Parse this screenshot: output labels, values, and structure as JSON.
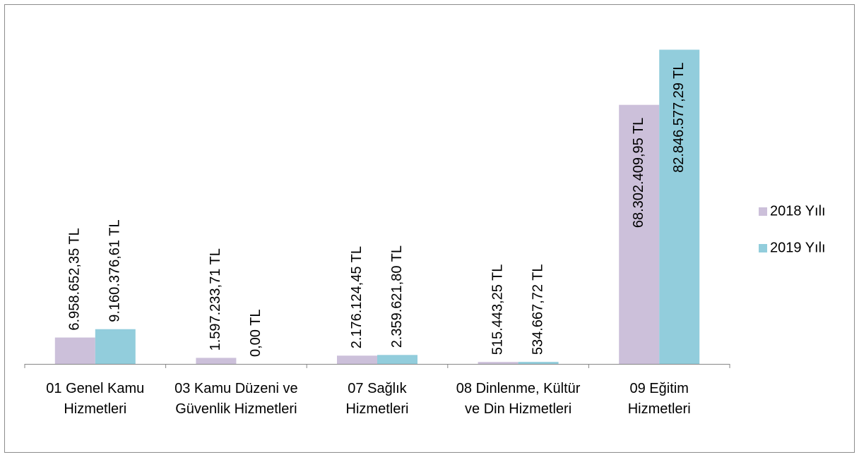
{
  "chart_data": {
    "type": "bar",
    "categories": [
      "01 Genel Kamu Hizmetleri",
      "03 Kamu Düzeni ve Güvenlik Hizmetleri",
      "07 Sağlık Hizmetleri",
      "08 Dinlenme, Kültür ve Din Hizmetleri",
      "09 Eğitim Hizmetleri"
    ],
    "series": [
      {
        "name": "2018 Yılı",
        "color": "#ccc0da",
        "values": [
          6958652.35,
          1597233.71,
          2176124.45,
          515443.25,
          68302409.95
        ],
        "value_labels": [
          "6.958.652,35 TL",
          "1.597.233,71 TL",
          "2.176.124,45 TL",
          "515.443,25 TL",
          "68.302.409,95 TL"
        ]
      },
      {
        "name": "2019 Yılı",
        "color": "#92cddc",
        "values": [
          9160376.61,
          0,
          2359621.8,
          534667.72,
          82846577.29
        ],
        "value_labels": [
          "9.160.376,61 TL",
          "0,00 TL",
          "2.359.621,80 TL",
          "534.667,72 TL",
          "82.846.577,29 TL"
        ]
      }
    ],
    "ylim": [
      0,
      90000000
    ],
    "legend": "right"
  }
}
